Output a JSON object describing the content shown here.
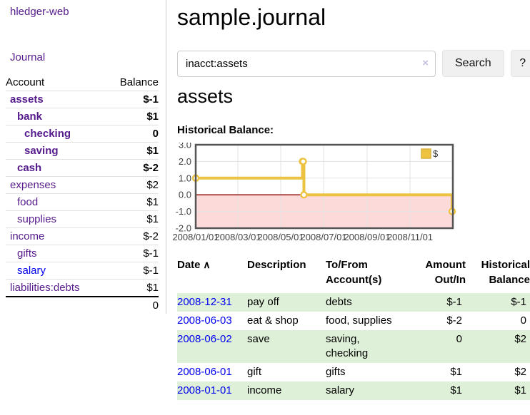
{
  "app": {
    "brand": "hledger-web",
    "nav_journal": "Journal"
  },
  "colors": {
    "brand_purple": "#551a8b",
    "link_blue": "#0000ee",
    "negative_strong": "#8b1a1a",
    "negative_muted": "#b06060",
    "row_shade_green": "#dff0d8",
    "chart_gold": "#edc240",
    "chart_negative_region": "#fcdada",
    "chart_zero_line": "#8b0000"
  },
  "sidebar": {
    "headers": {
      "account": "Account",
      "balance": "Balance"
    },
    "accounts": [
      {
        "name": "assets",
        "indent": 0,
        "in_query": true,
        "balance": "$-1",
        "balance_style": "negative"
      },
      {
        "name": "bank",
        "indent": 1,
        "in_query": true,
        "balance": "$1",
        "balance_style": "normal"
      },
      {
        "name": "checking",
        "indent": 2,
        "in_query": true,
        "balance": "0",
        "balance_style": "normal"
      },
      {
        "name": "saving",
        "indent": 2,
        "in_query": true,
        "balance": "$1",
        "balance_style": "normal"
      },
      {
        "name": "cash",
        "indent": 1,
        "in_query": true,
        "balance": "$-2",
        "balance_style": "negative"
      },
      {
        "name": "expenses",
        "indent": 0,
        "in_query": false,
        "balance": "$2",
        "balance_style": "normal"
      },
      {
        "name": "food",
        "indent": 1,
        "in_query": false,
        "balance": "$1",
        "balance_style": "normal"
      },
      {
        "name": "supplies",
        "indent": 1,
        "in_query": false,
        "balance": "$1",
        "balance_style": "normal"
      },
      {
        "name": "income",
        "indent": 0,
        "in_query": false,
        "balance": "$-2",
        "balance_style": "negative-muted"
      },
      {
        "name": "gifts",
        "indent": 1,
        "in_query": false,
        "balance": "$-1",
        "balance_style": "negative-muted"
      },
      {
        "name": "salary",
        "indent": 1,
        "in_query": false,
        "balance": "$-1",
        "balance_style": "negative-muted",
        "link_style": "blue"
      },
      {
        "name": "liabilities:debts",
        "indent": 0,
        "in_query": false,
        "balance": "$1",
        "balance_style": "normal"
      }
    ],
    "total": "0"
  },
  "header": {
    "title": "sample.journal"
  },
  "search": {
    "value": "inacct:assets",
    "clear_icon": "×",
    "button_label": "Search",
    "help_label": "?"
  },
  "account_page": {
    "title": "assets",
    "chart_label": "Historical Balance:"
  },
  "chart_data": {
    "type": "line",
    "title": "Historical Balance:",
    "series": [
      {
        "name": "$",
        "color": "#edc240",
        "step": true,
        "points": [
          {
            "date": "2008-01-01",
            "value": 1
          },
          {
            "date": "2008-06-01",
            "value": 2
          },
          {
            "date": "2008-06-02",
            "value": 2
          },
          {
            "date": "2008-06-03",
            "value": 0
          },
          {
            "date": "2008-12-31",
            "value": -1
          }
        ]
      }
    ],
    "ylim": [
      -2,
      3
    ],
    "ylabels": [
      "3.0",
      "2.0",
      "1.0",
      "0.0",
      "-1.0",
      "-2.0"
    ],
    "xticks": [
      "2008/01/01",
      "2008/03/01",
      "2008/05/01",
      "2008/07/01",
      "2008/09/01",
      "2008/11/01"
    ],
    "x_start": "2008-01-01",
    "x_range_days": 366,
    "grid": true,
    "legend": {
      "label": "$",
      "position": "top-right"
    }
  },
  "register": {
    "sort_icon": "∧",
    "headers": [
      {
        "label": "Date",
        "align": "left",
        "sorted": true
      },
      {
        "label": "Description",
        "align": "left"
      },
      {
        "label": "To/From Account(s)",
        "align": "left"
      },
      {
        "label": "Amount Out/In",
        "align": "right"
      },
      {
        "label": "Historical Balance",
        "align": "right"
      }
    ],
    "rows": [
      {
        "date": "2008-12-31",
        "description": "pay off",
        "accounts": "debts",
        "amount": "$-1",
        "amount_style": "negative",
        "balance": "$-1",
        "balance_style": "negative",
        "shaded": true
      },
      {
        "date": "2008-06-03",
        "description": "eat & shop",
        "accounts": "food, supplies",
        "amount": "$-2",
        "amount_style": "negative",
        "balance": "0",
        "balance_style": "normal",
        "shaded": false
      },
      {
        "date": "2008-06-02",
        "description": "save",
        "accounts": "saving, checking",
        "amount": "0",
        "amount_style": "normal",
        "balance": "$2",
        "balance_style": "normal",
        "shaded": true
      },
      {
        "date": "2008-06-01",
        "description": "gift",
        "accounts": "gifts",
        "amount": "$1",
        "amount_style": "normal",
        "balance": "$2",
        "balance_style": "normal",
        "shaded": false
      },
      {
        "date": "2008-01-01",
        "description": "income",
        "accounts": "salary",
        "amount": "$1",
        "amount_style": "normal",
        "balance": "$1",
        "balance_style": "normal",
        "shaded": true
      }
    ]
  }
}
